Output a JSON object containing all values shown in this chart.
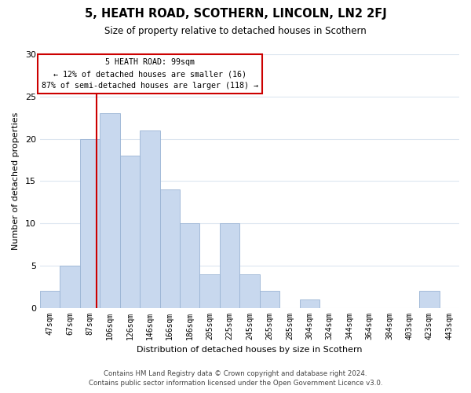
{
  "title": "5, HEATH ROAD, SCOTHERN, LINCOLN, LN2 2FJ",
  "subtitle": "Size of property relative to detached houses in Scothern",
  "xlabel": "Distribution of detached houses by size in Scothern",
  "ylabel": "Number of detached properties",
  "bar_labels": [
    "47sqm",
    "67sqm",
    "87sqm",
    "106sqm",
    "126sqm",
    "146sqm",
    "166sqm",
    "186sqm",
    "205sqm",
    "225sqm",
    "245sqm",
    "265sqm",
    "285sqm",
    "304sqm",
    "324sqm",
    "344sqm",
    "364sqm",
    "384sqm",
    "403sqm",
    "423sqm",
    "443sqm"
  ],
  "bar_values": [
    2,
    5,
    20,
    23,
    18,
    21,
    14,
    10,
    4,
    10,
    4,
    2,
    0,
    1,
    0,
    0,
    0,
    0,
    0,
    2,
    0
  ],
  "bar_color": "#c8d8ee",
  "bar_edge_color": "#9ab4d4",
  "vline_pos": 2.33,
  "vline_color": "#cc0000",
  "annotation_title": "5 HEATH ROAD: 99sqm",
  "annotation_line1": "← 12% of detached houses are smaller (16)",
  "annotation_line2": "87% of semi-detached houses are larger (118) →",
  "annotation_box_color": "#ffffff",
  "annotation_box_edge": "#cc0000",
  "ylim": [
    0,
    30
  ],
  "yticks": [
    0,
    5,
    10,
    15,
    20,
    25,
    30
  ],
  "footer_line1": "Contains HM Land Registry data © Crown copyright and database right 2024.",
  "footer_line2": "Contains public sector information licensed under the Open Government Licence v3.0.",
  "background_color": "#ffffff",
  "grid_color": "#dce6f0"
}
